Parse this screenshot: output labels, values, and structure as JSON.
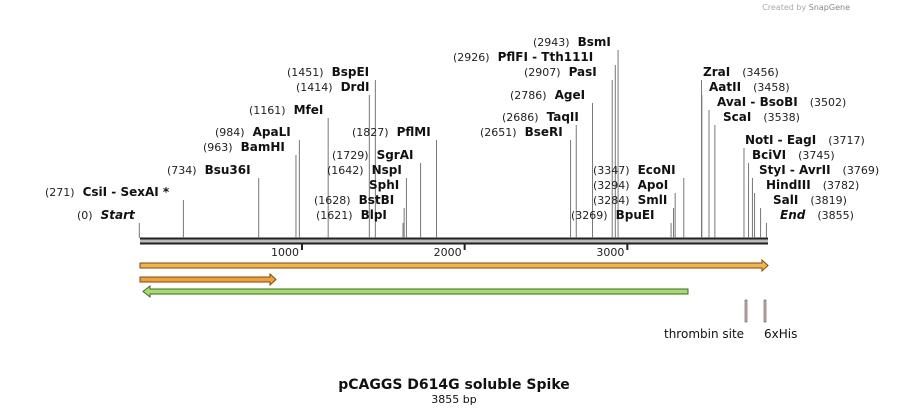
{
  "credit": "Created by",
  "brand": "SnapGene",
  "title": "pCAGGS D614G soluble Spike",
  "length": "3855 bp",
  "ticks": [
    1000,
    2000,
    3000
  ],
  "sites": [
    {
      "name": "Start",
      "position": {
        "value": 0,
        "label": "(0)"
      }
    },
    {
      "name": "CsiI  -  SexAI *",
      "position": {
        "value": 271,
        "label": "(271)"
      }
    },
    {
      "name": "Bsu36I",
      "position": {
        "value": 734,
        "label": "(734)"
      }
    },
    {
      "name": "BamHI",
      "position": {
        "value": 963,
        "label": "(963)"
      }
    },
    {
      "name": "ApaLI",
      "position": {
        "value": 984,
        "label": "(984)"
      }
    },
    {
      "name": "MfeI",
      "position": {
        "value": 1161,
        "label": "(1161)"
      }
    },
    {
      "name": "DrdI",
      "position": {
        "value": 1414,
        "label": "(1414)"
      }
    },
    {
      "name": "BspEI",
      "position": {
        "value": 1451,
        "label": "(1451)"
      }
    },
    {
      "name": "PflMI",
      "position": {
        "value": 1827,
        "label": "(1827)"
      }
    },
    {
      "name": "SgrAI",
      "position": {
        "value": 1729,
        "label": "(1729)"
      }
    },
    {
      "name": "NspI",
      "position": {
        "value": 1642,
        "label": "(1642)"
      }
    },
    {
      "name": "SphI"
    },
    {
      "name": "BstBI",
      "position": {
        "value": 1628,
        "label": "(1628)"
      }
    },
    {
      "name": "BlpI",
      "position": {
        "value": 1621,
        "label": "(1621)"
      }
    },
    {
      "name": "BsmI",
      "position": {
        "value": 2943,
        "label": "(2943)"
      }
    },
    {
      "name": "PflFI  -  Tth111I",
      "position": {
        "value": 2926,
        "label": "(2926)"
      }
    },
    {
      "name": "PasI",
      "position": {
        "value": 2907,
        "label": "(2907)"
      }
    },
    {
      "name": "AgeI",
      "position": {
        "value": 2786,
        "label": "(2786)"
      }
    },
    {
      "name": "TaqII",
      "position": {
        "value": 2686,
        "label": "(2686)"
      }
    },
    {
      "name": "BseRI",
      "position": {
        "value": 2651,
        "label": "(2651)"
      }
    },
    {
      "name": "EcoNI",
      "position": {
        "value": 3347,
        "label": "(3347)"
      }
    },
    {
      "name": "ApoI",
      "position": {
        "value": 3294,
        "label": "(3294)"
      }
    },
    {
      "name": "SmlI",
      "position": {
        "value": 3284,
        "label": "(3284)"
      }
    },
    {
      "name": "BpuEI",
      "position": {
        "value": 3269,
        "label": "(3269)"
      }
    },
    {
      "name": "ZraI",
      "position": {
        "value": 3456,
        "label": "(3456)"
      }
    },
    {
      "name": "AatII",
      "position": {
        "value": 3458,
        "label": "(3458)"
      }
    },
    {
      "name": "AvaI  -  BsoBI",
      "position": {
        "value": 3502,
        "label": "(3502)"
      }
    },
    {
      "name": "ScaI",
      "position": {
        "value": 3538,
        "label": "(3538)"
      }
    },
    {
      "name": "NotI  -  EagI",
      "position": {
        "value": 3717,
        "label": "(3717)"
      }
    },
    {
      "name": "BciVI",
      "position": {
        "value": 3745,
        "label": "(3745)"
      }
    },
    {
      "name": "StyI  -  AvrII",
      "position": {
        "value": 3769,
        "label": "(3769)"
      }
    },
    {
      "name": "HindIII",
      "position": {
        "value": 3782,
        "label": "(3782)"
      }
    },
    {
      "name": "SalI",
      "position": {
        "value": 3819,
        "label": "(3819)"
      }
    },
    {
      "name": "End",
      "position": {
        "value": 3855,
        "label": "(3855)"
      }
    }
  ],
  "features": [
    "thrombin site",
    "6xHis"
  ]
}
